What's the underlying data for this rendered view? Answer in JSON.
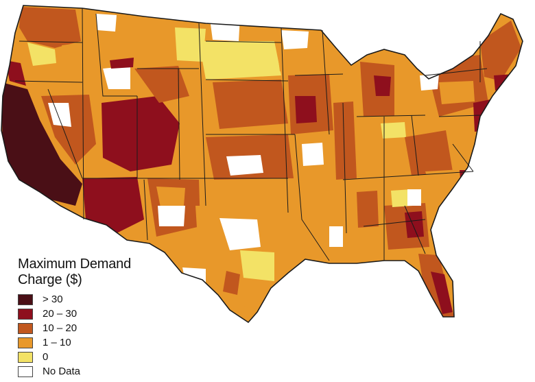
{
  "legend": {
    "title_line1": "Maximum Demand",
    "title_line2": "Charge ($)",
    "items": [
      {
        "label": "> 30",
        "color": "#4a0f16"
      },
      {
        "label": "20 – 30",
        "color": "#8e0f1d"
      },
      {
        "label": "10 – 20",
        "color": "#c1571e"
      },
      {
        "label": "1 – 10",
        "color": "#e8982a"
      },
      {
        "label": "0",
        "color": "#f3e266"
      },
      {
        "label": "No Data",
        "color": "#ffffff"
      }
    ]
  },
  "colors": {
    "gt30": "#4a0f16",
    "c20_30": "#8e0f1d",
    "c10_20": "#c1571e",
    "c1_10": "#e8982a",
    "c0": "#f3e266",
    "nodata": "#ffffff",
    "border": "#1a1a1a"
  }
}
